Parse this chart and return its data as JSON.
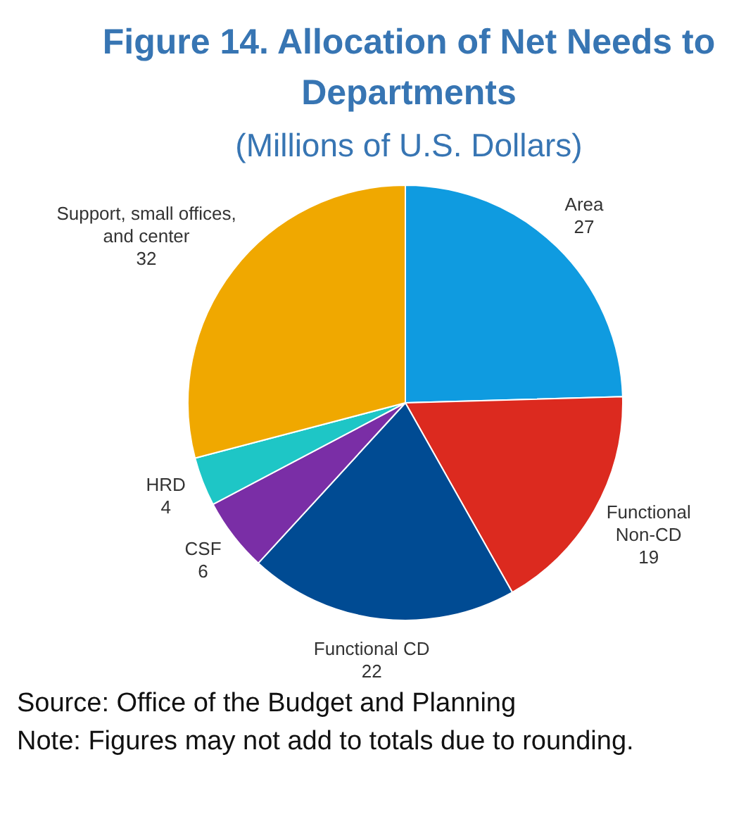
{
  "chart_data": {
    "type": "pie",
    "title": "Figure 14. Allocation of Net Needs to Departments",
    "subtitle": "(Millions of U.S. Dollars)",
    "categories": [
      "Area",
      "Functional Non-CD",
      "Functional CD",
      "CSF",
      "HRD",
      "Support, small offices, and center"
    ],
    "values": [
      27,
      19,
      22,
      6,
      4,
      32
    ],
    "colors": [
      "#0f9be0",
      "#dc2a1f",
      "#004b93",
      "#7a2ea6",
      "#1ec6c6",
      "#f0a800"
    ],
    "data_labels": true,
    "legend": false,
    "annotations": [
      "Source: Office of the Budget and Planning",
      "Note: Figures may not add to totals due to rounding."
    ]
  }
}
